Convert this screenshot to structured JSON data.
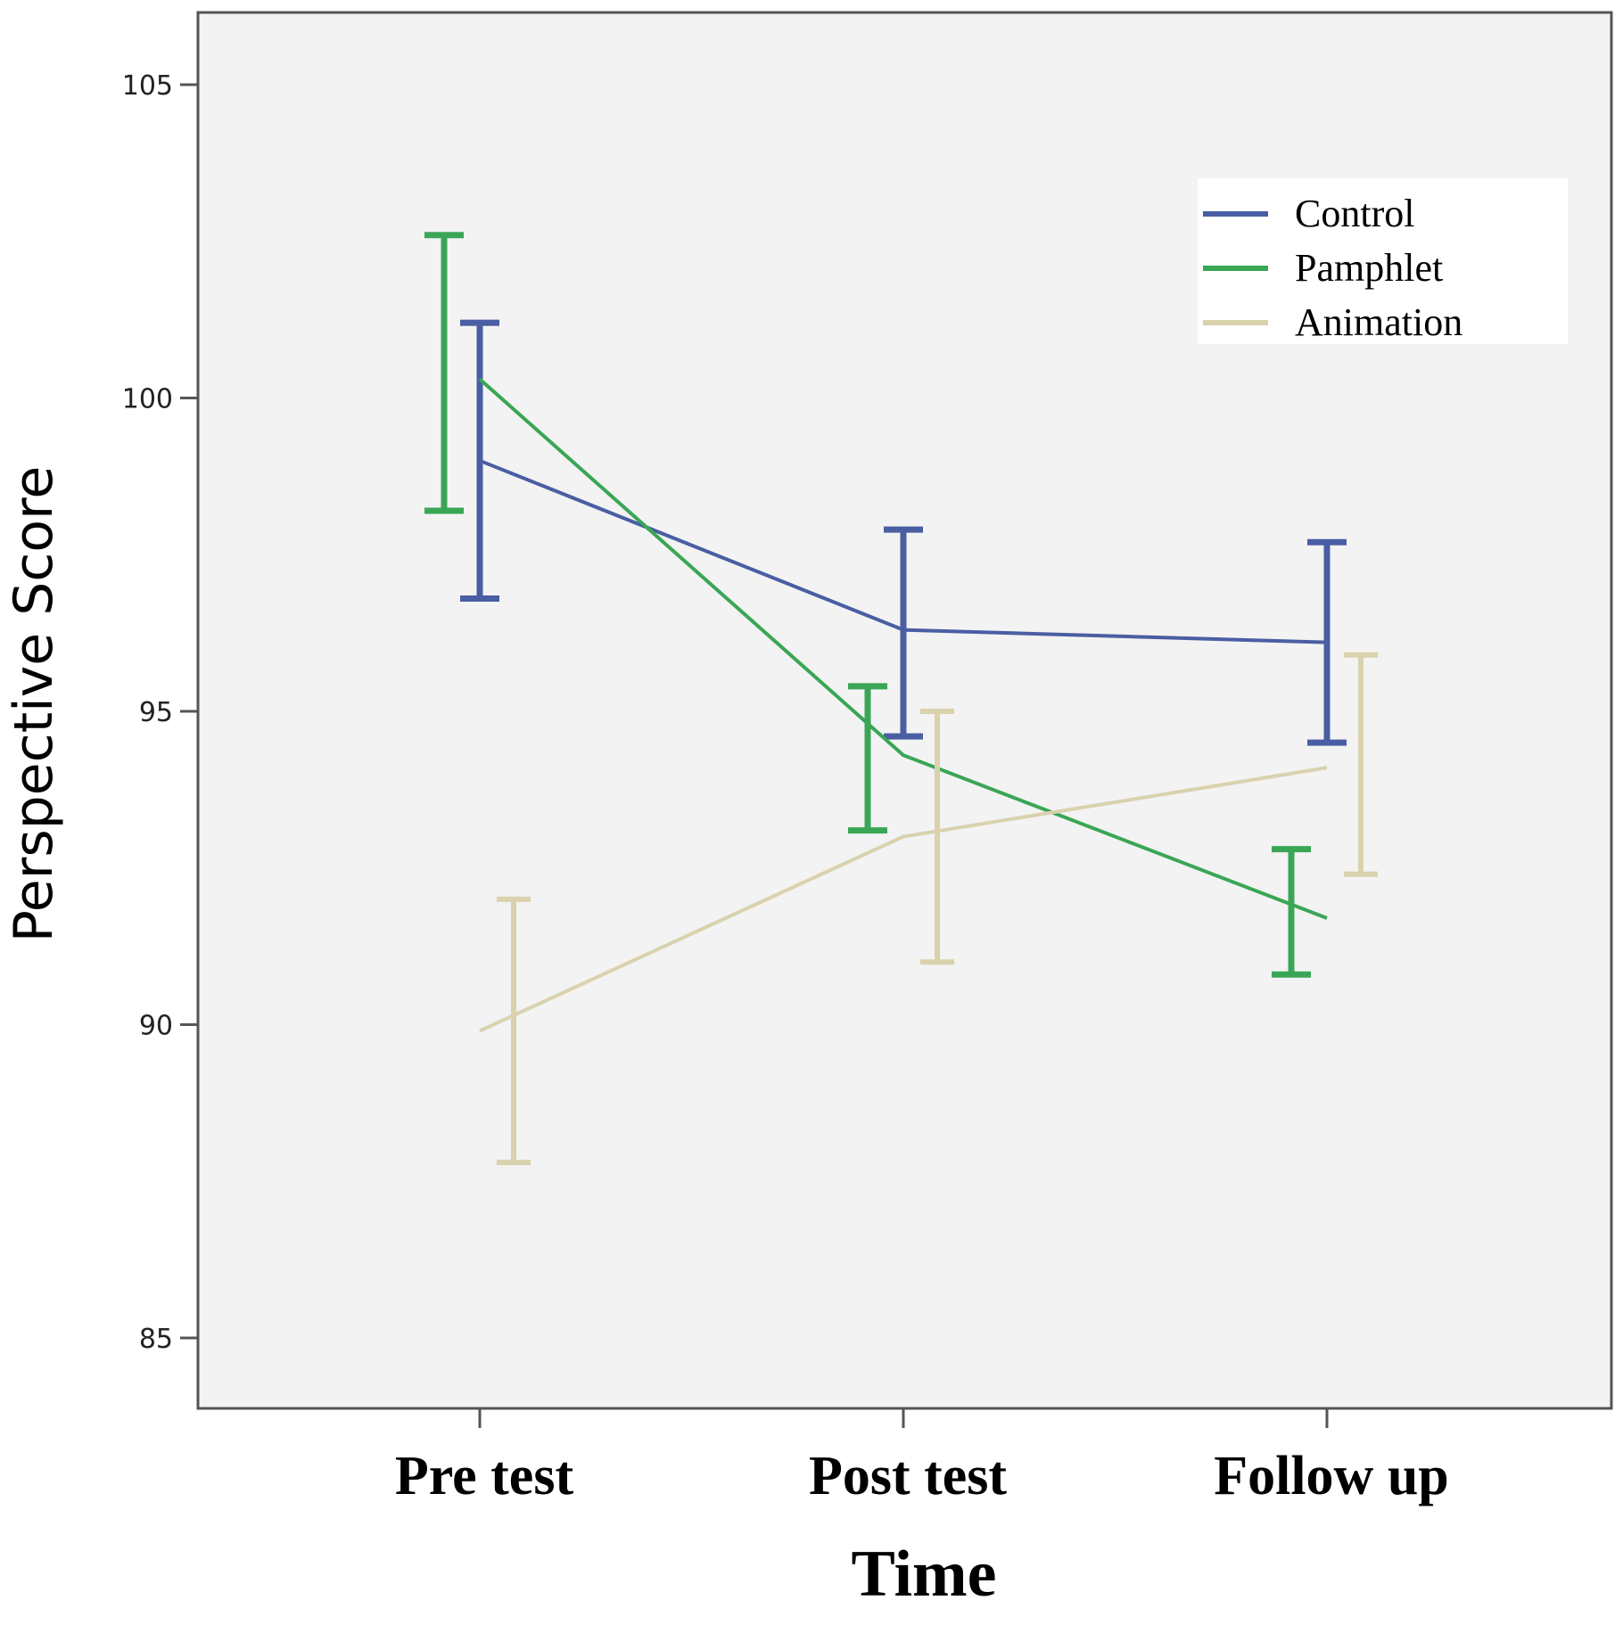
{
  "chart_data": {
    "type": "line",
    "xlabel": "Time",
    "ylabel": "Perspective  Score",
    "categories": [
      "Pre test",
      "Post test",
      "Follow up"
    ],
    "ylim": [
      84,
      106.2
    ],
    "yticks": [
      85,
      90,
      95,
      100,
      105
    ],
    "legend_position": "top-right",
    "error_bars": true,
    "grid": false,
    "series": [
      {
        "name": "Control",
        "color": "#4a5ea3",
        "values": [
          99.0,
          96.3,
          96.1
        ],
        "error_low": [
          96.8,
          94.6,
          94.5
        ],
        "error_high": [
          101.2,
          97.9,
          97.7
        ]
      },
      {
        "name": "Pamphlet",
        "color": "#3aa655",
        "values": [
          100.3,
          94.3,
          91.7
        ],
        "error_low": [
          98.2,
          93.1,
          90.8
        ],
        "error_high": [
          102.6,
          95.4,
          92.8
        ]
      },
      {
        "name": "Animation",
        "color": "#d9d2ad",
        "values": [
          89.9,
          93.0,
          94.1
        ],
        "error_low": [
          87.8,
          91.0,
          92.4
        ],
        "error_high": [
          92.0,
          95.0,
          95.9
        ]
      }
    ]
  }
}
